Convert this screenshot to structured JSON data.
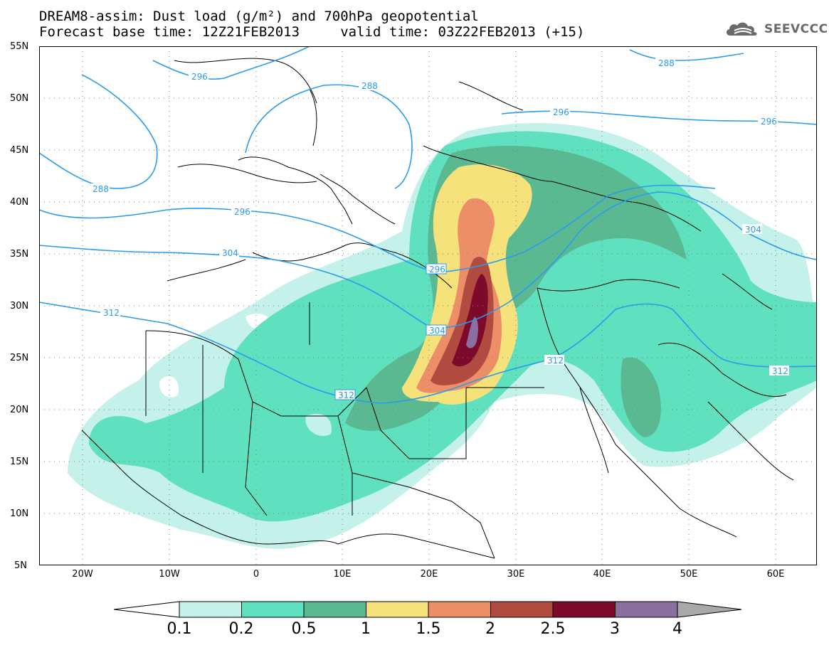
{
  "title": {
    "line1": "DREAM8-assim: Dust load (g/m²) and 700hPa geopotential",
    "line2": "Forecast base time: 12Z21FEB2013     valid time: 03Z22FEB2013 (+15)"
  },
  "logo": {
    "text": "SEEVCCC",
    "icon": "cloud-icon"
  },
  "axes": {
    "lat_labels": [
      "55N",
      "50N",
      "45N",
      "40N",
      "35N",
      "30N",
      "25N",
      "20N",
      "15N",
      "10N",
      "5N"
    ],
    "lon_labels": [
      "20W",
      "10W",
      "0",
      "10E",
      "20E",
      "30E",
      "40E",
      "50E",
      "60E"
    ]
  },
  "contour_labels": [
    "296",
    "288",
    "296",
    "296",
    "288",
    "288",
    "296",
    "304",
    "296",
    "304",
    "312",
    "304",
    "312",
    "312",
    "312"
  ],
  "colorbar": {
    "labels": [
      "0.1",
      "0.2",
      "0.5",
      "1",
      "1.5",
      "2",
      "2.5",
      "3",
      "4"
    ],
    "colors": [
      "#c4f1e9",
      "#5fe0be",
      "#5ab991",
      "#f5e27b",
      "#ec8f68",
      "#b14b3f",
      "#7e0a2b",
      "#8a6fa0"
    ],
    "arrow_left_color": "#ffffff",
    "arrow_right_color": "#a9a9a9"
  }
}
